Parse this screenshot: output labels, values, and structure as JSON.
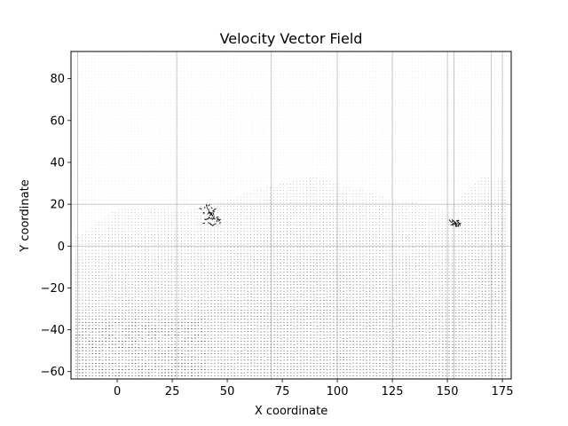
{
  "chart_data": {
    "type": "quiver",
    "title": "Velocity Vector Field",
    "xlabel": "X coordinate",
    "ylabel": "Y coordinate",
    "xlim": [
      -21,
      179
    ],
    "ylim": [
      -63.5,
      93
    ],
    "xticks": [
      0,
      25,
      50,
      75,
      100,
      125,
      150,
      175
    ],
    "yticks": [
      -60,
      -40,
      -20,
      0,
      20,
      40,
      60,
      80
    ],
    "grid": true,
    "grid_x_lines": [
      -18,
      27,
      70,
      100,
      125,
      150,
      153,
      170,
      175
    ],
    "grid_y_lines": [
      20,
      0
    ],
    "field": {
      "x_range": [
        -19,
        177
      ],
      "y_range": [
        -62,
        91
      ],
      "grid_step": 1.5,
      "arrow_color": "#000000",
      "vortices": [
        {
          "x": 43,
          "y": 15,
          "note": "sparse scattered arrows"
        },
        {
          "x": 154,
          "y": 11,
          "note": "dense cluster"
        }
      ],
      "low_speed_boundary": [
        [
          -19,
          4
        ],
        [
          0,
          18
        ],
        [
          25,
          19
        ],
        [
          30,
          17
        ],
        [
          50,
          22
        ],
        [
          60,
          26
        ],
        [
          75,
          30
        ],
        [
          90,
          33
        ],
        [
          100,
          30
        ],
        [
          110,
          27
        ],
        [
          125,
          22
        ],
        [
          140,
          20
        ],
        [
          150,
          16
        ],
        [
          160,
          28
        ],
        [
          165,
          33
        ],
        [
          177,
          32
        ]
      ]
    }
  }
}
